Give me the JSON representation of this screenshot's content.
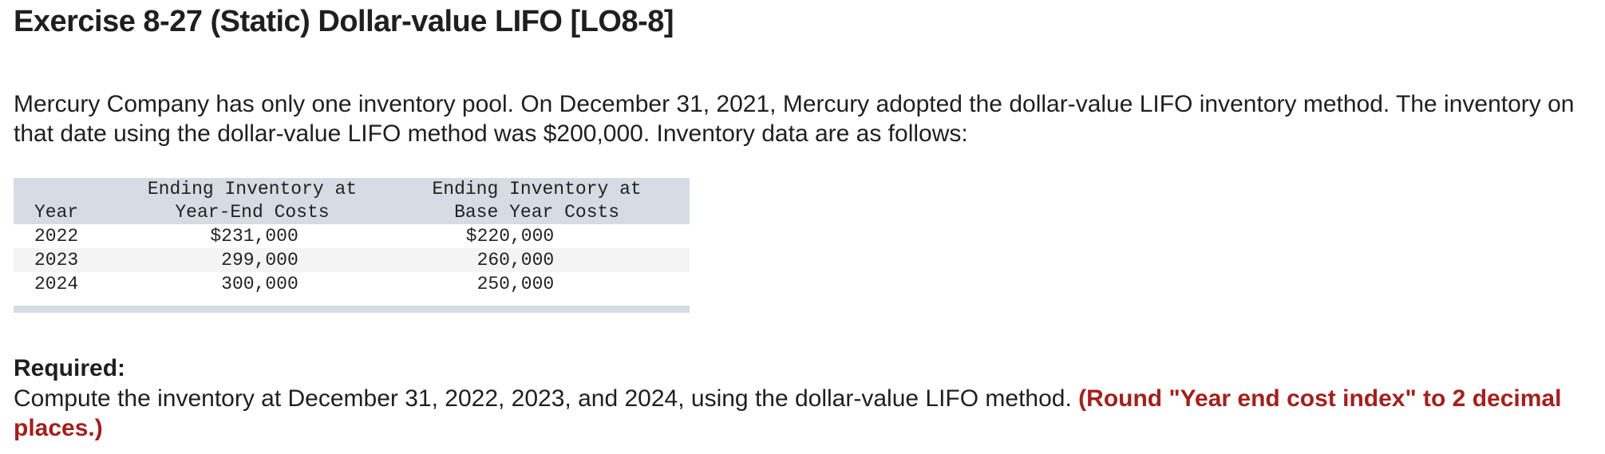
{
  "exercise": {
    "title": "Exercise 8-27 (Static) Dollar-value LIFO [LO8-8]",
    "intro": "Mercury Company has only one inventory pool. On December 31, 2021, Mercury adopted the dollar-value LIFO inventory method. The inventory on that date using the dollar-value LIFO method was $200,000. Inventory data are as follows:"
  },
  "table": {
    "headers": {
      "year": "Year",
      "year_end_line1": "Ending Inventory at",
      "year_end_line2": "Year-End Costs",
      "base_year_line1": "Ending Inventory at",
      "base_year_line2": "Base Year Costs"
    },
    "rows": [
      {
        "year": "2022",
        "year_end": "$231,000",
        "base_year": "$220,000"
      },
      {
        "year": "2023",
        "year_end": "299,000",
        "base_year": "260,000"
      },
      {
        "year": "2024",
        "year_end": "300,000",
        "base_year": "250,000"
      }
    ]
  },
  "required": {
    "label": "Required:",
    "text": "Compute the inventory at December 31, 2022, 2023, and 2024, using the dollar-value LIFO method.",
    "note": "(Round \"Year end cost index\" to 2 decimal places.)"
  },
  "colors": {
    "header_bg": "#d6dbe4",
    "alt_row_bg": "#f4f4f4",
    "note_red": "#a3201d"
  }
}
